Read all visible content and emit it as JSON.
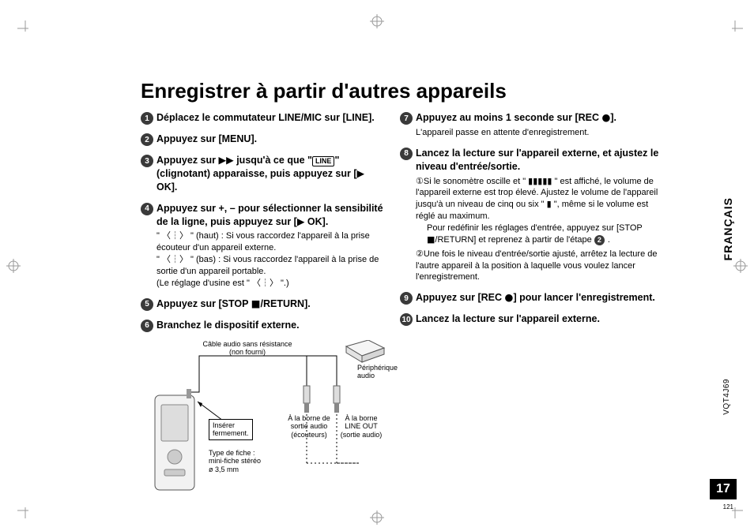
{
  "title": "Enregistrer à partir d'autres appareils",
  "language_label": "FRANÇAIS",
  "doc_code": "VQT4J69",
  "page_number": "17",
  "print_number": "121",
  "left_steps": [
    {
      "n": "1",
      "head": "Déplacez le commutateur LINE/MIC sur [LINE]."
    },
    {
      "n": "2",
      "head": "Appuyez sur [MENU]."
    },
    {
      "n": "3",
      "head_pre": "Appuyez sur ",
      "head_mid_icon": "ffwd",
      "head_post1": " jusqu'à ce que \"",
      "head_post_icon": "LINE",
      "head_post2": "\" (clignotant) apparaisse, puis appuyez sur [",
      "head_post_icon2": "play",
      "head_post3": " OK]."
    },
    {
      "n": "4",
      "head_pre": "Appuyez sur +, – pour sélectionner la sensibilité de la ligne, puis appuyez sur [",
      "head_icon": "play",
      "head_post": " OK].",
      "lines": [
        "\" 〈┆〉 \" (haut) : Si vous raccordez l'appareil à la prise écouteur d'un appareil externe.",
        "\" 〈┆〉 \" (bas) : Si vous raccordez l'appareil à la prise de sortie d'un appareil portable.",
        "(Le réglage d'usine est \" 〈┆〉 \".)"
      ]
    },
    {
      "n": "5",
      "head_pre": "Appuyez sur [STOP ",
      "head_icon": "stop",
      "head_post": "/RETURN]."
    },
    {
      "n": "6",
      "head": "Branchez le dispositif externe."
    }
  ],
  "right_steps": [
    {
      "n": "7",
      "head_pre": "Appuyez au moins 1 seconde sur [REC ",
      "head_icon": "rec",
      "head_post": "].",
      "body": "L'appareil passe en attente d'enregistrement."
    },
    {
      "n": "8",
      "head": "Lancez la lecture sur l'appareil externe, et ajustez le niveau d'entrée/sortie.",
      "subs": [
        {
          "circ": "①",
          "text_pre": "Si le sonomètre oscille et \" ",
          "text_icon": "over",
          "text_post": " \" est affiché, le volume de l'appareil externe est trop élevé. Ajustez le volume de l'appareil jusqu'à un niveau de cinq ou six \" ▮ \", même si le volume est réglé au maximum.",
          "extra_pre": "Pour redéfinir les réglages d'entrée, appuyez sur [STOP ",
          "extra_icon": "stop",
          "extra_mid": "/RETURN] et reprenez à partir de l'étape ",
          "extra_step": "2",
          "extra_post": "."
        },
        {
          "circ": "②",
          "text": "Une fois le niveau d'entrée/sortie ajusté, arrêtez la lecture de l'autre appareil à la position à laquelle vous voulez lancer l'enregistrement."
        }
      ]
    },
    {
      "n": "9",
      "head_pre": "Appuyez sur [REC ",
      "head_icon": "rec",
      "head_post": "] pour lancer l'enregistrement."
    },
    {
      "n": "10",
      "head": "Lancez la lecture sur l'appareil externe."
    }
  ],
  "diagram": {
    "cable_label": "Câble audio sans résistance\n(non fourni)",
    "insert_label": "Insérer\nfermement.",
    "plug_type": "Type de fiche :\nmini-fiche stéréo\nø 3,5 mm",
    "jack_audio": "À la borne de\nsortie audio\n(écouteurs)",
    "jack_lineout": "À la borne\nLINE OUT\n(sortie audio)",
    "device_label": "Périphérique\naudio"
  }
}
